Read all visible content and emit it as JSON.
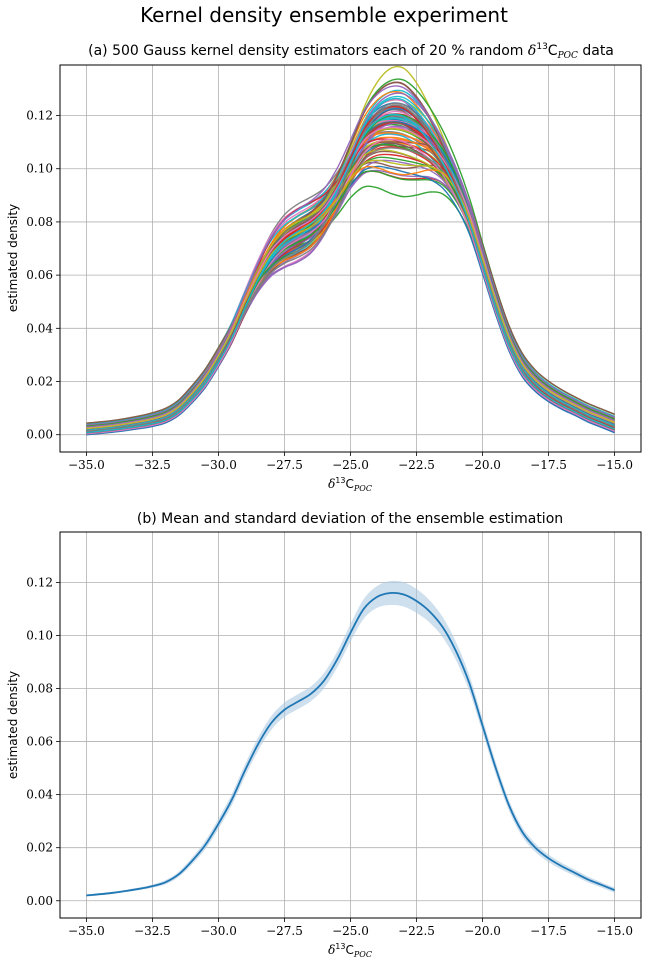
{
  "figure": {
    "title": "Kernel density ensemble experiment"
  },
  "chart_data": [
    {
      "type": "line",
      "title": "(a) 500 Gauss kernel density estimators each of 20 % random δ13CPOC data",
      "xlabel": "δ13CPOC",
      "ylabel": "estimated density",
      "xlim": [
        -36.0,
        -14.0
      ],
      "ylim": [
        -0.0065,
        0.139
      ],
      "xticks": [
        -35.0,
        -32.5,
        -30.0,
        -27.5,
        -25.0,
        -22.5,
        -20.0,
        -17.5,
        -15.0
      ],
      "xtick_labels": [
        "−35.0",
        "−32.5",
        "−30.0",
        "−27.5",
        "−25.0",
        "−22.5",
        "−20.0",
        "−17.5",
        "−15.0"
      ],
      "yticks": [
        0.0,
        0.02,
        0.04,
        0.06,
        0.08,
        0.1,
        0.12
      ],
      "ytick_labels": [
        "0.00",
        "0.02",
        "0.04",
        "0.06",
        "0.08",
        "0.10",
        "0.12"
      ],
      "grid": true,
      "ensemble_size": 500,
      "ensemble_mean": {
        "x": [
          -35.0,
          -34.0,
          -33.0,
          -32.5,
          -32.0,
          -31.5,
          -31.0,
          -30.5,
          -30.0,
          -29.5,
          -29.0,
          -28.5,
          -28.0,
          -27.5,
          -27.0,
          -26.5,
          -26.0,
          -25.5,
          -25.0,
          -24.5,
          -24.0,
          -23.5,
          -23.0,
          -22.5,
          -22.0,
          -21.5,
          -21.0,
          -20.5,
          -20.0,
          -19.5,
          -19.0,
          -18.5,
          -18.0,
          -17.5,
          -17.0,
          -16.5,
          -16.0,
          -15.5,
          -15.0
        ],
        "y": [
          0.002,
          0.003,
          0.0045,
          0.0055,
          0.007,
          0.01,
          0.015,
          0.021,
          0.029,
          0.038,
          0.049,
          0.059,
          0.067,
          0.072,
          0.075,
          0.078,
          0.083,
          0.091,
          0.101,
          0.11,
          0.1145,
          0.116,
          0.1155,
          0.113,
          0.109,
          0.103,
          0.094,
          0.082,
          0.066,
          0.05,
          0.036,
          0.026,
          0.02,
          0.016,
          0.013,
          0.0105,
          0.008,
          0.006,
          0.004
        ]
      },
      "spread_std": [
        0.0012,
        0.0012,
        0.0013,
        0.0014,
        0.0015,
        0.0016,
        0.0018,
        0.002,
        0.0022,
        0.0024,
        0.0026,
        0.0029,
        0.0031,
        0.0033,
        0.0034,
        0.0035,
        0.0035,
        0.0036,
        0.0038,
        0.0042,
        0.0045,
        0.0048,
        0.005,
        0.0049,
        0.0046,
        0.0042,
        0.0038,
        0.0033,
        0.003,
        0.0028,
        0.0026,
        0.0024,
        0.0022,
        0.0021,
        0.002,
        0.0019,
        0.0019,
        0.0019,
        0.0019
      ],
      "colors": [
        "#1f77b4",
        "#ff7f0e",
        "#2ca02c",
        "#d62728",
        "#9467bd",
        "#8c564b",
        "#e377c2",
        "#7f7f7f",
        "#bcbd22",
        "#17becf"
      ]
    },
    {
      "type": "line",
      "title": "(b) Mean and standard deviation of the ensemble estimation",
      "xlabel": "δ13CPOC",
      "ylabel": "estimated density",
      "xlim": [
        -36.0,
        -14.0
      ],
      "ylim": [
        -0.0065,
        0.139
      ],
      "xticks": [
        -35.0,
        -32.5,
        -30.0,
        -27.5,
        -25.0,
        -22.5,
        -20.0,
        -17.5,
        -15.0
      ],
      "xtick_labels": [
        "−35.0",
        "−32.5",
        "−30.0",
        "−27.5",
        "−25.0",
        "−22.5",
        "−20.0",
        "−17.5",
        "−15.0"
      ],
      "yticks": [
        0.0,
        0.02,
        0.04,
        0.06,
        0.08,
        0.1,
        0.12
      ],
      "ytick_labels": [
        "0.00",
        "0.02",
        "0.04",
        "0.06",
        "0.08",
        "0.10",
        "0.12"
      ],
      "grid": true,
      "series": [
        {
          "x": [
            -35.0,
            -34.0,
            -33.0,
            -32.5,
            -32.0,
            -31.5,
            -31.0,
            -30.5,
            -30.0,
            -29.5,
            -29.0,
            -28.5,
            -28.0,
            -27.5,
            -27.0,
            -26.5,
            -26.0,
            -25.5,
            -25.0,
            -24.5,
            -24.0,
            -23.5,
            -23.0,
            -22.5,
            -22.0,
            -21.5,
            -21.0,
            -20.5,
            -20.0,
            -19.5,
            -19.0,
            -18.5,
            -18.0,
            -17.5,
            -17.0,
            -16.5,
            -16.0,
            -15.5,
            -15.0
          ],
          "y": [
            0.002,
            0.003,
            0.0045,
            0.0055,
            0.007,
            0.01,
            0.015,
            0.021,
            0.029,
            0.038,
            0.049,
            0.059,
            0.067,
            0.072,
            0.075,
            0.078,
            0.083,
            0.091,
            0.101,
            0.11,
            0.1145,
            0.116,
            0.1155,
            0.113,
            0.109,
            0.103,
            0.094,
            0.082,
            0.066,
            0.05,
            0.036,
            0.026,
            0.02,
            0.016,
            0.013,
            0.0105,
            0.008,
            0.006,
            0.004
          ],
          "std": [
            0.0004,
            0.0004,
            0.0005,
            0.0006,
            0.0008,
            0.001,
            0.0013,
            0.0016,
            0.0019,
            0.0021,
            0.0023,
            0.0025,
            0.0026,
            0.0027,
            0.0028,
            0.0028,
            0.0029,
            0.003,
            0.0033,
            0.0037,
            0.0041,
            0.0045,
            0.0046,
            0.0045,
            0.0042,
            0.0038,
            0.0034,
            0.003,
            0.0026,
            0.0023,
            0.002,
            0.0018,
            0.0016,
            0.0014,
            0.0013,
            0.0012,
            0.0011,
            0.001,
            0.001
          ],
          "color": "#1f77b4",
          "fill_color": "#aec9e3"
        }
      ]
    }
  ]
}
